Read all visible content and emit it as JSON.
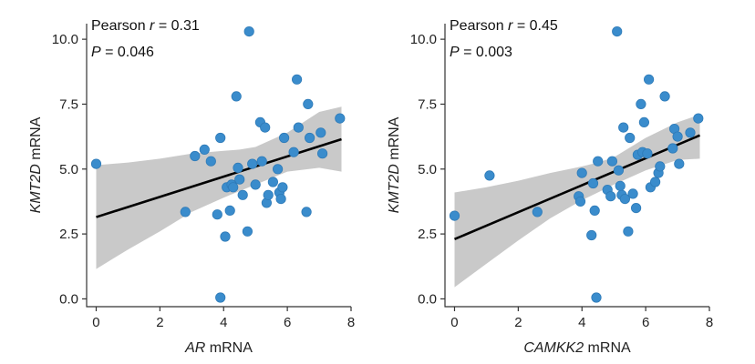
{
  "chart_data": [
    {
      "type": "scatter",
      "xlabel_gene": "AR",
      "xlabel_suffix": " mRNA",
      "ylabel_gene": "KMT2D",
      "ylabel_suffix": " mRNA",
      "stat_line1_prefix": "Pearson ",
      "stat_line1_var": "r",
      "stat_line1_value": " = 0.31",
      "stat_line2_var": "P",
      "stat_line2_value": " = 0.046",
      "xlim": [
        -0.3,
        8.0
      ],
      "ylim": [
        -0.3,
        10.6
      ],
      "xticks": [
        "0",
        "2",
        "4",
        "6",
        "8"
      ],
      "yticks": [
        "0.0",
        "2.5",
        "5.0",
        "7.5",
        "10.0"
      ],
      "grid": false,
      "regression": {
        "x0": 0,
        "y0": 3.15,
        "x1": 7.7,
        "y1": 6.15
      },
      "confidence_band": {
        "x": [
          0,
          1,
          2,
          3,
          4,
          4.5,
          5,
          6,
          7,
          7.7
        ],
        "upper": [
          5.15,
          5.25,
          5.4,
          5.6,
          5.7,
          5.75,
          5.85,
          6.4,
          7.2,
          7.4
        ],
        "lower": [
          1.15,
          1.9,
          2.6,
          3.35,
          3.9,
          4.15,
          4.4,
          4.9,
          5.05,
          4.9
        ]
      },
      "point_color": "#3a8ccc",
      "points": [
        {
          "x": 0.0,
          "y": 5.2
        },
        {
          "x": 2.8,
          "y": 3.35
        },
        {
          "x": 3.1,
          "y": 5.5
        },
        {
          "x": 3.4,
          "y": 5.75
        },
        {
          "x": 3.6,
          "y": 5.3
        },
        {
          "x": 3.8,
          "y": 3.25
        },
        {
          "x": 3.9,
          "y": 6.2
        },
        {
          "x": 3.9,
          "y": 0.05
        },
        {
          "x": 4.05,
          "y": 2.4
        },
        {
          "x": 4.1,
          "y": 4.3
        },
        {
          "x": 4.2,
          "y": 3.4
        },
        {
          "x": 4.25,
          "y": 4.4
        },
        {
          "x": 4.3,
          "y": 4.3
        },
        {
          "x": 4.4,
          "y": 7.8
        },
        {
          "x": 4.45,
          "y": 5.05
        },
        {
          "x": 4.5,
          "y": 4.6
        },
        {
          "x": 4.6,
          "y": 4.0
        },
        {
          "x": 4.75,
          "y": 2.6
        },
        {
          "x": 4.8,
          "y": 10.3
        },
        {
          "x": 4.9,
          "y": 5.2
        },
        {
          "x": 5.0,
          "y": 4.4
        },
        {
          "x": 5.15,
          "y": 6.8
        },
        {
          "x": 5.2,
          "y": 5.3
        },
        {
          "x": 5.3,
          "y": 6.6
        },
        {
          "x": 5.35,
          "y": 3.7
        },
        {
          "x": 5.4,
          "y": 4.0
        },
        {
          "x": 5.55,
          "y": 4.5
        },
        {
          "x": 5.7,
          "y": 5.0
        },
        {
          "x": 5.75,
          "y": 4.1
        },
        {
          "x": 5.8,
          "y": 3.85
        },
        {
          "x": 5.85,
          "y": 4.3
        },
        {
          "x": 5.9,
          "y": 6.2
        },
        {
          "x": 6.2,
          "y": 5.65
        },
        {
          "x": 6.3,
          "y": 8.45
        },
        {
          "x": 6.35,
          "y": 6.6
        },
        {
          "x": 6.6,
          "y": 3.35
        },
        {
          "x": 6.65,
          "y": 7.5
        },
        {
          "x": 6.7,
          "y": 6.2
        },
        {
          "x": 7.05,
          "y": 6.4
        },
        {
          "x": 7.1,
          "y": 5.6
        },
        {
          "x": 7.65,
          "y": 6.95
        }
      ]
    },
    {
      "type": "scatter",
      "xlabel_gene": "CAMKK2",
      "xlabel_suffix": " mRNA",
      "ylabel_gene": "KMT2D",
      "ylabel_suffix": " mRNA",
      "stat_line1_prefix": "Pearson ",
      "stat_line1_var": "r",
      "stat_line1_value": " = 0.45",
      "stat_line2_var": "P",
      "stat_line2_value": " = 0.003",
      "xlim": [
        -0.3,
        8.0
      ],
      "ylim": [
        -0.3,
        10.6
      ],
      "xticks": [
        "0",
        "2",
        "4",
        "6",
        "8"
      ],
      "yticks": [
        "0.0",
        "2.5",
        "5.0",
        "7.5",
        "10.0"
      ],
      "grid": false,
      "regression": {
        "x0": 0,
        "y0": 2.3,
        "x1": 7.7,
        "y1": 6.3
      },
      "confidence_band": {
        "x": [
          0,
          1,
          2,
          3,
          4,
          4.5,
          5,
          6,
          7,
          7.7
        ],
        "upper": [
          4.1,
          4.3,
          4.55,
          4.85,
          5.1,
          5.25,
          5.45,
          6.2,
          6.8,
          7.1
        ],
        "lower": [
          0.45,
          1.35,
          2.25,
          3.1,
          3.8,
          4.1,
          4.4,
          4.95,
          5.35,
          5.4
        ]
      },
      "point_color": "#3a8ccc",
      "points": [
        {
          "x": 0.0,
          "y": 3.2
        },
        {
          "x": 1.1,
          "y": 4.75
        },
        {
          "x": 2.6,
          "y": 3.35
        },
        {
          "x": 3.9,
          "y": 3.95
        },
        {
          "x": 3.95,
          "y": 3.75
        },
        {
          "x": 4.0,
          "y": 4.85
        },
        {
          "x": 4.3,
          "y": 2.45
        },
        {
          "x": 4.35,
          "y": 4.45
        },
        {
          "x": 4.4,
          "y": 3.4
        },
        {
          "x": 4.45,
          "y": 0.05
        },
        {
          "x": 4.5,
          "y": 5.3
        },
        {
          "x": 4.8,
          "y": 4.2
        },
        {
          "x": 4.9,
          "y": 3.95
        },
        {
          "x": 4.95,
          "y": 5.3
        },
        {
          "x": 5.1,
          "y": 10.3
        },
        {
          "x": 5.15,
          "y": 4.95
        },
        {
          "x": 5.2,
          "y": 4.35
        },
        {
          "x": 5.25,
          "y": 4.0
        },
        {
          "x": 5.3,
          "y": 6.6
        },
        {
          "x": 5.35,
          "y": 3.85
        },
        {
          "x": 5.45,
          "y": 2.6
        },
        {
          "x": 5.5,
          "y": 6.2
        },
        {
          "x": 5.6,
          "y": 4.05
        },
        {
          "x": 5.7,
          "y": 3.5
        },
        {
          "x": 5.75,
          "y": 5.55
        },
        {
          "x": 5.85,
          "y": 7.5
        },
        {
          "x": 5.9,
          "y": 5.65
        },
        {
          "x": 5.95,
          "y": 6.8
        },
        {
          "x": 6.05,
          "y": 5.6
        },
        {
          "x": 6.1,
          "y": 8.45
        },
        {
          "x": 6.15,
          "y": 4.3
        },
        {
          "x": 6.3,
          "y": 4.5
        },
        {
          "x": 6.4,
          "y": 4.85
        },
        {
          "x": 6.45,
          "y": 5.1
        },
        {
          "x": 6.6,
          "y": 7.8
        },
        {
          "x": 6.85,
          "y": 5.8
        },
        {
          "x": 6.9,
          "y": 6.55
        },
        {
          "x": 7.0,
          "y": 6.25
        },
        {
          "x": 7.05,
          "y": 5.2
        },
        {
          "x": 7.4,
          "y": 6.4
        },
        {
          "x": 7.65,
          "y": 6.95
        }
      ]
    }
  ]
}
